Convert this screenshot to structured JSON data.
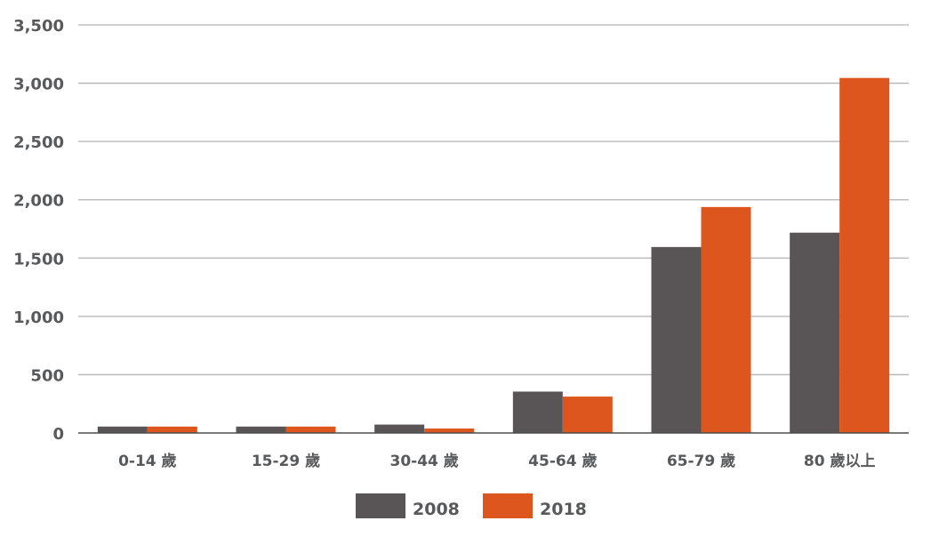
{
  "chart_data": {
    "type": "bar",
    "title": "",
    "xlabel": "",
    "ylabel": "",
    "ylim": [
      0,
      3500
    ],
    "yticks": [
      0,
      500,
      1000,
      1500,
      2000,
      2500,
      3000,
      3500
    ],
    "ytick_labels": [
      "0",
      "500",
      "1,000",
      "1,500",
      "2,000",
      "2,500",
      "3,000",
      "3,500"
    ],
    "grid": true,
    "legend_position": "bottom-center",
    "categories": [
      "0-14 歲",
      "15-29 歲",
      "30-44 歲",
      "45-64 歲",
      "65-79 歲",
      "80 歲以上"
    ],
    "series": [
      {
        "name": "2008",
        "color": "#595556",
        "values": [
          55,
          55,
          72,
          355,
          1595,
          1718
        ]
      },
      {
        "name": "2018",
        "color": "#dd561d",
        "values": [
          55,
          55,
          38,
          312,
          1938,
          3045
        ]
      }
    ]
  }
}
